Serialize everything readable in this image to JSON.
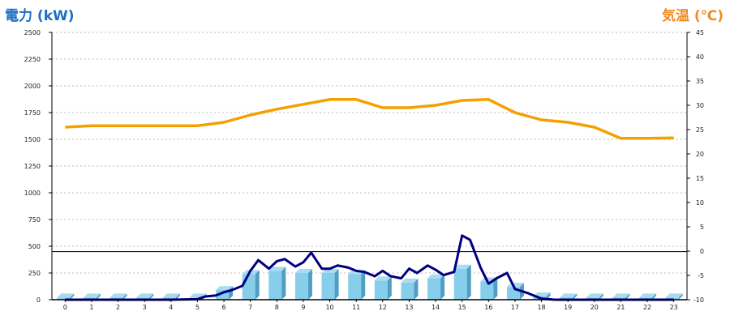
{
  "chart_data": {
    "type": "bar",
    "left_axis_title": "電力 (kW)",
    "right_axis_title": "気温 (℃)",
    "categories": [
      "0",
      "1",
      "2",
      "3",
      "4",
      "5",
      "6",
      "7",
      "8",
      "9",
      "10",
      "11",
      "12",
      "13",
      "14",
      "15",
      "16",
      "17",
      "18",
      "19",
      "20",
      "21",
      "22",
      "23"
    ],
    "left_ticks": [
      "0",
      "250",
      "500",
      "750",
      "1000",
      "1250",
      "1500",
      "1750",
      "2000",
      "2250",
      "2500"
    ],
    "right_ticks": [
      "-10",
      "-5",
      "0",
      "5",
      "10",
      "15",
      "20",
      "25",
      "30",
      "35",
      "40",
      "45"
    ],
    "ylim_left": [
      0,
      2500
    ],
    "ylim_right": [
      -10,
      45
    ],
    "reference_line_kw": 450,
    "grid": true,
    "bars": {
      "color": "#87ceeb",
      "values": [
        20,
        20,
        20,
        20,
        20,
        20,
        90,
        240,
        270,
        250,
        250,
        240,
        180,
        160,
        200,
        290,
        170,
        120,
        30,
        20,
        20,
        20,
        20,
        20
      ]
    },
    "power_line": {
      "color": "#000080",
      "x": [
        0,
        1,
        2,
        3,
        4,
        5,
        5.3,
        5.7,
        6,
        6.3,
        6.7,
        7,
        7.3,
        7.7,
        8,
        8.3,
        8.7,
        9,
        9.3,
        9.7,
        10,
        10.3,
        10.7,
        11,
        11.3,
        11.7,
        12,
        12.3,
        12.7,
        13,
        13.3,
        13.7,
        14,
        14.3,
        14.7,
        15,
        15.3,
        15.7,
        16,
        16.3,
        16.7,
        17,
        17.5,
        18,
        18.5,
        19,
        20,
        21,
        22,
        23
      ],
      "values": [
        0,
        0,
        0,
        0,
        0,
        5,
        30,
        40,
        70,
        90,
        130,
        270,
        370,
        290,
        360,
        380,
        310,
        350,
        440,
        290,
        290,
        320,
        300,
        270,
        260,
        220,
        270,
        220,
        200,
        290,
        250,
        320,
        280,
        230,
        260,
        600,
        560,
        300,
        150,
        200,
        250,
        100,
        60,
        10,
        0,
        0,
        0,
        0,
        0,
        0
      ]
    },
    "temperature_line": {
      "color": "#f5a000",
      "values": [
        25.5,
        25.8,
        25.8,
        25.8,
        25.8,
        25.8,
        26.5,
        28,
        29.2,
        30.2,
        31.2,
        31.2,
        29.5,
        29.5,
        30,
        31,
        31.2,
        28.5,
        27,
        26.5,
        25.5,
        23.2,
        23.2,
        23.3
      ]
    }
  }
}
